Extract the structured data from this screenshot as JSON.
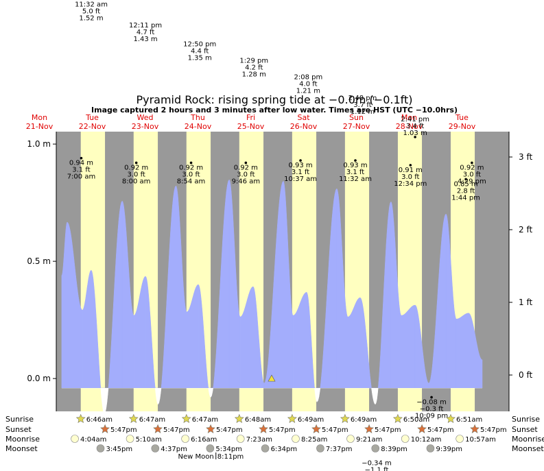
{
  "chart_data": {
    "type": "tide",
    "title": "Pyramid Rock: rising  spring tide at −0.0m (−0.1ft)",
    "subtitle": "Image captured 2 hours and 3 minutes after low water. Times are HST (UTC −10.0hrs)",
    "days": [
      {
        "name": "Mon",
        "date": "21-Nov"
      },
      {
        "name": "Tue",
        "date": "22-Nov"
      },
      {
        "name": "Wed",
        "date": "23-Nov"
      },
      {
        "name": "Thu",
        "date": "24-Nov"
      },
      {
        "name": "Fri",
        "date": "25-Nov"
      },
      {
        "name": "Sat",
        "date": "26-Nov"
      },
      {
        "name": "Sun",
        "date": "27-Nov"
      },
      {
        "name": "Mon",
        "date": "28-Nov"
      },
      {
        "name": "Tue",
        "date": "29-Nov"
      }
    ],
    "ylim": [
      -0.14,
      1.053
    ],
    "yticks": [
      {
        "value": 0,
        "label": "0.0 m"
      },
      {
        "value": 0.5,
        "label": "0.5 m"
      },
      {
        "value": 1,
        "label": "1.0 m"
      }
    ],
    "y2lim": [
      -0.5,
      3.349
    ],
    "y2ticks": [
      {
        "value": 0,
        "label": "0 ft"
      },
      {
        "value": 1,
        "label": "1 ft"
      },
      {
        "value": 2,
        "label": "2 ft"
      },
      {
        "value": 3,
        "label": "3 ft"
      }
    ],
    "curve": {
      "color": "#a3adfc",
      "x": [
        22.1,
        24.6,
        31.5,
        35.5,
        41.5,
        49.6,
        54.9,
        60.2,
        65.9,
        74.0,
        78.9,
        84.2,
        89.8,
        98.2,
        103.2,
        109.1,
        114.1,
        122.8,
        127.2,
        133.4,
        138.1,
        147.1,
        152.1,
        157.7,
        164.6,
        171.7,
        176.4,
        182.7,
        188.9,
        196.7,
        201.4,
        207.0,
        213.2
      ],
      "values": [
        0.44,
        0.667,
        0.292,
        0.462,
        -0.15,
        0.757,
        0.269,
        0.436,
        -0.11,
        0.822,
        0.284,
        0.401,
        -0.08,
        0.848,
        0.263,
        0.392,
        -0.02,
        0.842,
        0.269,
        0.368,
        -0.1,
        0.81,
        0.263,
        0.345,
        -0.11,
        0.754,
        0.269,
        0.313,
        -0.02,
        0.702,
        0.254,
        0.279,
        0.08
      ]
    },
    "now": {
      "x": 117.5,
      "value": 0
    },
    "high_tides": [
      {
        "date": "22-Nov",
        "time": "11:32 am",
        "ft": "5.0 ft",
        "value": 1.52,
        "value_label": "1.52 m"
      },
      {
        "date": "23-Nov",
        "time": "12:11 pm",
        "ft": "4.7 ft",
        "value": 1.43,
        "value_label": "1.43 m"
      },
      {
        "date": "24-Nov",
        "time": "12:50 pm",
        "ft": "4.4 ft",
        "value": 1.35,
        "value_label": "1.35 m"
      },
      {
        "date": "25-Nov",
        "time": "1:29 pm",
        "ft": "4.2 ft",
        "value": 1.28,
        "value_label": "1.28 m"
      },
      {
        "date": "26-Nov",
        "time": "2:08 pm",
        "ft": "4.0 ft",
        "value": 1.21,
        "value_label": "1.21 m"
      },
      {
        "date": "27-Nov",
        "time": "2:48 pm",
        "ft": "3.7 ft",
        "value": 1.12,
        "value_label": "1.12 m"
      },
      {
        "date": "28-Nov",
        "time": "2:41 pm",
        "ft": "3.4 ft",
        "value": 1.03,
        "value_label": "1.03 m"
      },
      {
        "date": "22-Nov",
        "time": "7:00 am",
        "ft": "3.1 ft",
        "value": 0.94,
        "value_label": "0.94 m"
      },
      {
        "date": "23-Nov",
        "time": "8:00 am",
        "ft": "3.0 ft",
        "value": 0.92,
        "value_label": "0.92 m"
      },
      {
        "date": "24-Nov",
        "time": "8:54 am",
        "ft": "3.0 ft",
        "value": 0.92,
        "value_label": "0.92 m"
      },
      {
        "date": "25-Nov",
        "time": "9:46 am",
        "ft": "3.0 ft",
        "value": 0.92,
        "value_label": "0.92 m"
      },
      {
        "date": "26-Nov",
        "time": "10:37 am",
        "ft": "3.1 ft",
        "value": 0.93,
        "value_label": "0.93 m"
      },
      {
        "date": "27-Nov",
        "time": "11:32 am",
        "ft": "3.1 ft",
        "value": 0.93,
        "value_label": "0.93 m"
      },
      {
        "date": "28-Nov",
        "time": "12:34 pm",
        "ft": "3.0 ft",
        "value": 0.91,
        "value_label": "0.91 m"
      },
      {
        "date": "29-Nov",
        "time": "1:44 pm",
        "ft": "2.8 ft",
        "value": 0.85,
        "value_label": "0.85 m"
      },
      {
        "date": "29-Nov",
        "time": "4:29 pm",
        "ft": "3.0 ft",
        "value": 0.92,
        "value_label": "0.92 m"
      }
    ],
    "low_tides": [
      {
        "date": "28-Nov",
        "time": "10:09 pm",
        "ft": "−0.3 ft",
        "value": -0.08,
        "value_label": "−0.08 m"
      },
      {
        "date": "26-Nov",
        "x": 165.2,
        "ft": "−1.1 ft",
        "value": -0.34,
        "value_label": "−0.34 m"
      }
    ],
    "rows": [
      {
        "label": "Sunrise",
        "icon": "sunrise",
        "times": [
          null,
          "6:46am",
          "6:47am",
          "6:47am",
          "6:48am",
          "6:49am",
          "6:49am",
          "6:50am",
          "6:51am"
        ]
      },
      {
        "label": "Sunset",
        "icon": "sunset",
        "times": [
          null,
          "5:47pm",
          "5:47pm",
          "5:47pm",
          "5:47pm",
          "5:47pm",
          "5:47pm",
          "5:47pm",
          "5:47pm"
        ]
      },
      {
        "label": "Moonrise",
        "icon": "moonrise",
        "times": [
          null,
          "4:04am",
          "5:10am",
          "6:16am",
          "7:23am",
          "8:25am",
          "9:21am",
          "10:12am",
          "10:57am"
        ]
      },
      {
        "label": "Moonset",
        "icon": "moonset",
        "times": [
          null,
          "3:45pm",
          "4:37pm",
          "5:34pm",
          "6:34pm",
          "7:37pm",
          "8:39pm",
          "9:39pm",
          null
        ]
      }
    ],
    "moon_phase": {
      "label": "New Moon",
      "date": "24-Nov",
      "time": "8:11pm"
    }
  }
}
